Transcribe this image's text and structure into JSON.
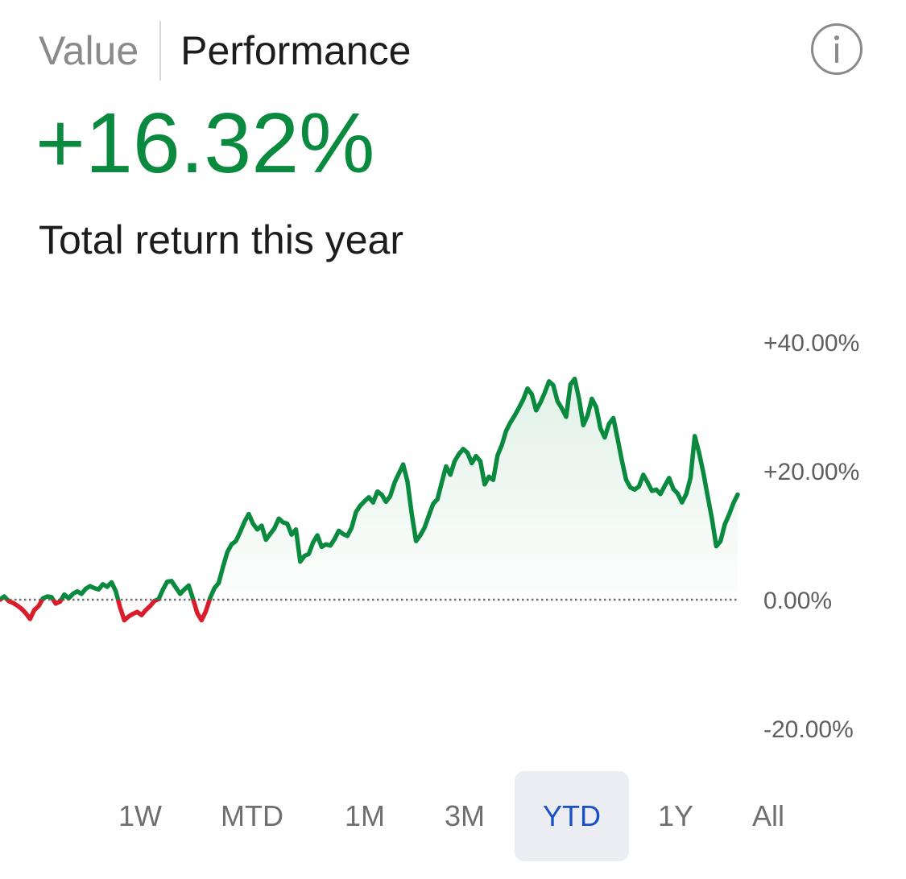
{
  "header": {
    "tabs": [
      {
        "label": "Value",
        "active": false
      },
      {
        "label": "Performance",
        "active": true
      }
    ],
    "info_icon": "info-circle-icon"
  },
  "summary": {
    "value": "+16.32%",
    "description": "Total return this year"
  },
  "colors": {
    "positive": "#0a8a3e",
    "negative": "#d81d2c",
    "selected_range_text": "#1851c4",
    "selected_range_bg": "#ecedf2"
  },
  "ranges": [
    {
      "label": "1W",
      "selected": false
    },
    {
      "label": "MTD",
      "selected": false
    },
    {
      "label": "1M",
      "selected": false
    },
    {
      "label": "3M",
      "selected": false
    },
    {
      "label": "YTD",
      "selected": true
    },
    {
      "label": "1Y",
      "selected": false
    },
    {
      "label": "All",
      "selected": false
    }
  ],
  "chart_data": {
    "type": "line",
    "y_ticks": [
      "+40.00%",
      "+20.00%",
      "0.00%",
      "-20.00%"
    ],
    "y_tick_values": [
      40,
      20,
      0,
      -20
    ],
    "ylim": [
      -20,
      40
    ],
    "baseline": 0,
    "x_unit": "trading days (YTD)",
    "values": [
      0.0,
      0.5,
      -0.2,
      -0.5,
      -0.9,
      -1.4,
      -2.1,
      -3.0,
      -1.6,
      -1.0,
      0.2,
      0.5,
      0.4,
      -0.6,
      -0.3,
      0.8,
      0.2,
      0.9,
      1.3,
      0.9,
      1.7,
      2.1,
      1.8,
      1.6,
      2.4,
      2.0,
      2.7,
      1.3,
      -1.2,
      -3.2,
      -2.6,
      -2.2,
      -1.9,
      -2.4,
      -1.6,
      -1.0,
      -0.2,
      0.1,
      1.6,
      2.8,
      2.9,
      1.9,
      0.9,
      1.6,
      2.2,
      0.1,
      -2.1,
      -3.2,
      -1.8,
      0.3,
      1.8,
      2.6,
      5.1,
      7.4,
      8.6,
      9.1,
      10.5,
      12.1,
      13.3,
      11.8,
      10.9,
      11.5,
      9.3,
      10.2,
      11.1,
      12.6,
      12.0,
      11.8,
      10.1,
      10.9,
      5.9,
      6.8,
      7.1,
      8.9,
      10.0,
      8.2,
      8.6,
      8.4,
      9.4,
      10.7,
      10.2,
      9.9,
      11.2,
      13.6,
      14.6,
      15.3,
      15.9,
      15.1,
      16.8,
      16.3,
      15.2,
      16.1,
      18.2,
      19.6,
      21.0,
      18.4,
      13.3,
      9.1,
      10.0,
      11.2,
      13.1,
      14.9,
      15.6,
      18.2,
      20.7,
      19.4,
      21.5,
      22.6,
      23.4,
      22.8,
      21.2,
      22.3,
      21.5,
      17.9,
      19.1,
      18.6,
      22.4,
      24.0,
      26.2,
      27.5,
      28.6,
      29.8,
      31.1,
      32.8,
      31.9,
      29.4,
      30.6,
      32.1,
      33.9,
      33.3,
      30.8,
      29.7,
      28.4,
      33.4,
      34.3,
      31.2,
      27.1,
      28.6,
      31.2,
      29.9,
      26.6,
      25.2,
      27.3,
      28.2,
      25.0,
      21.6,
      18.6,
      17.4,
      17.1,
      17.6,
      19.4,
      18.2,
      16.9,
      17.1,
      16.4,
      17.7,
      18.9,
      17.2,
      16.5,
      15.1,
      16.4,
      18.9,
      25.4,
      22.8,
      19.7,
      16.1,
      12.6,
      8.3,
      9.1,
      11.7,
      13.2,
      15.0,
      16.32
    ]
  }
}
